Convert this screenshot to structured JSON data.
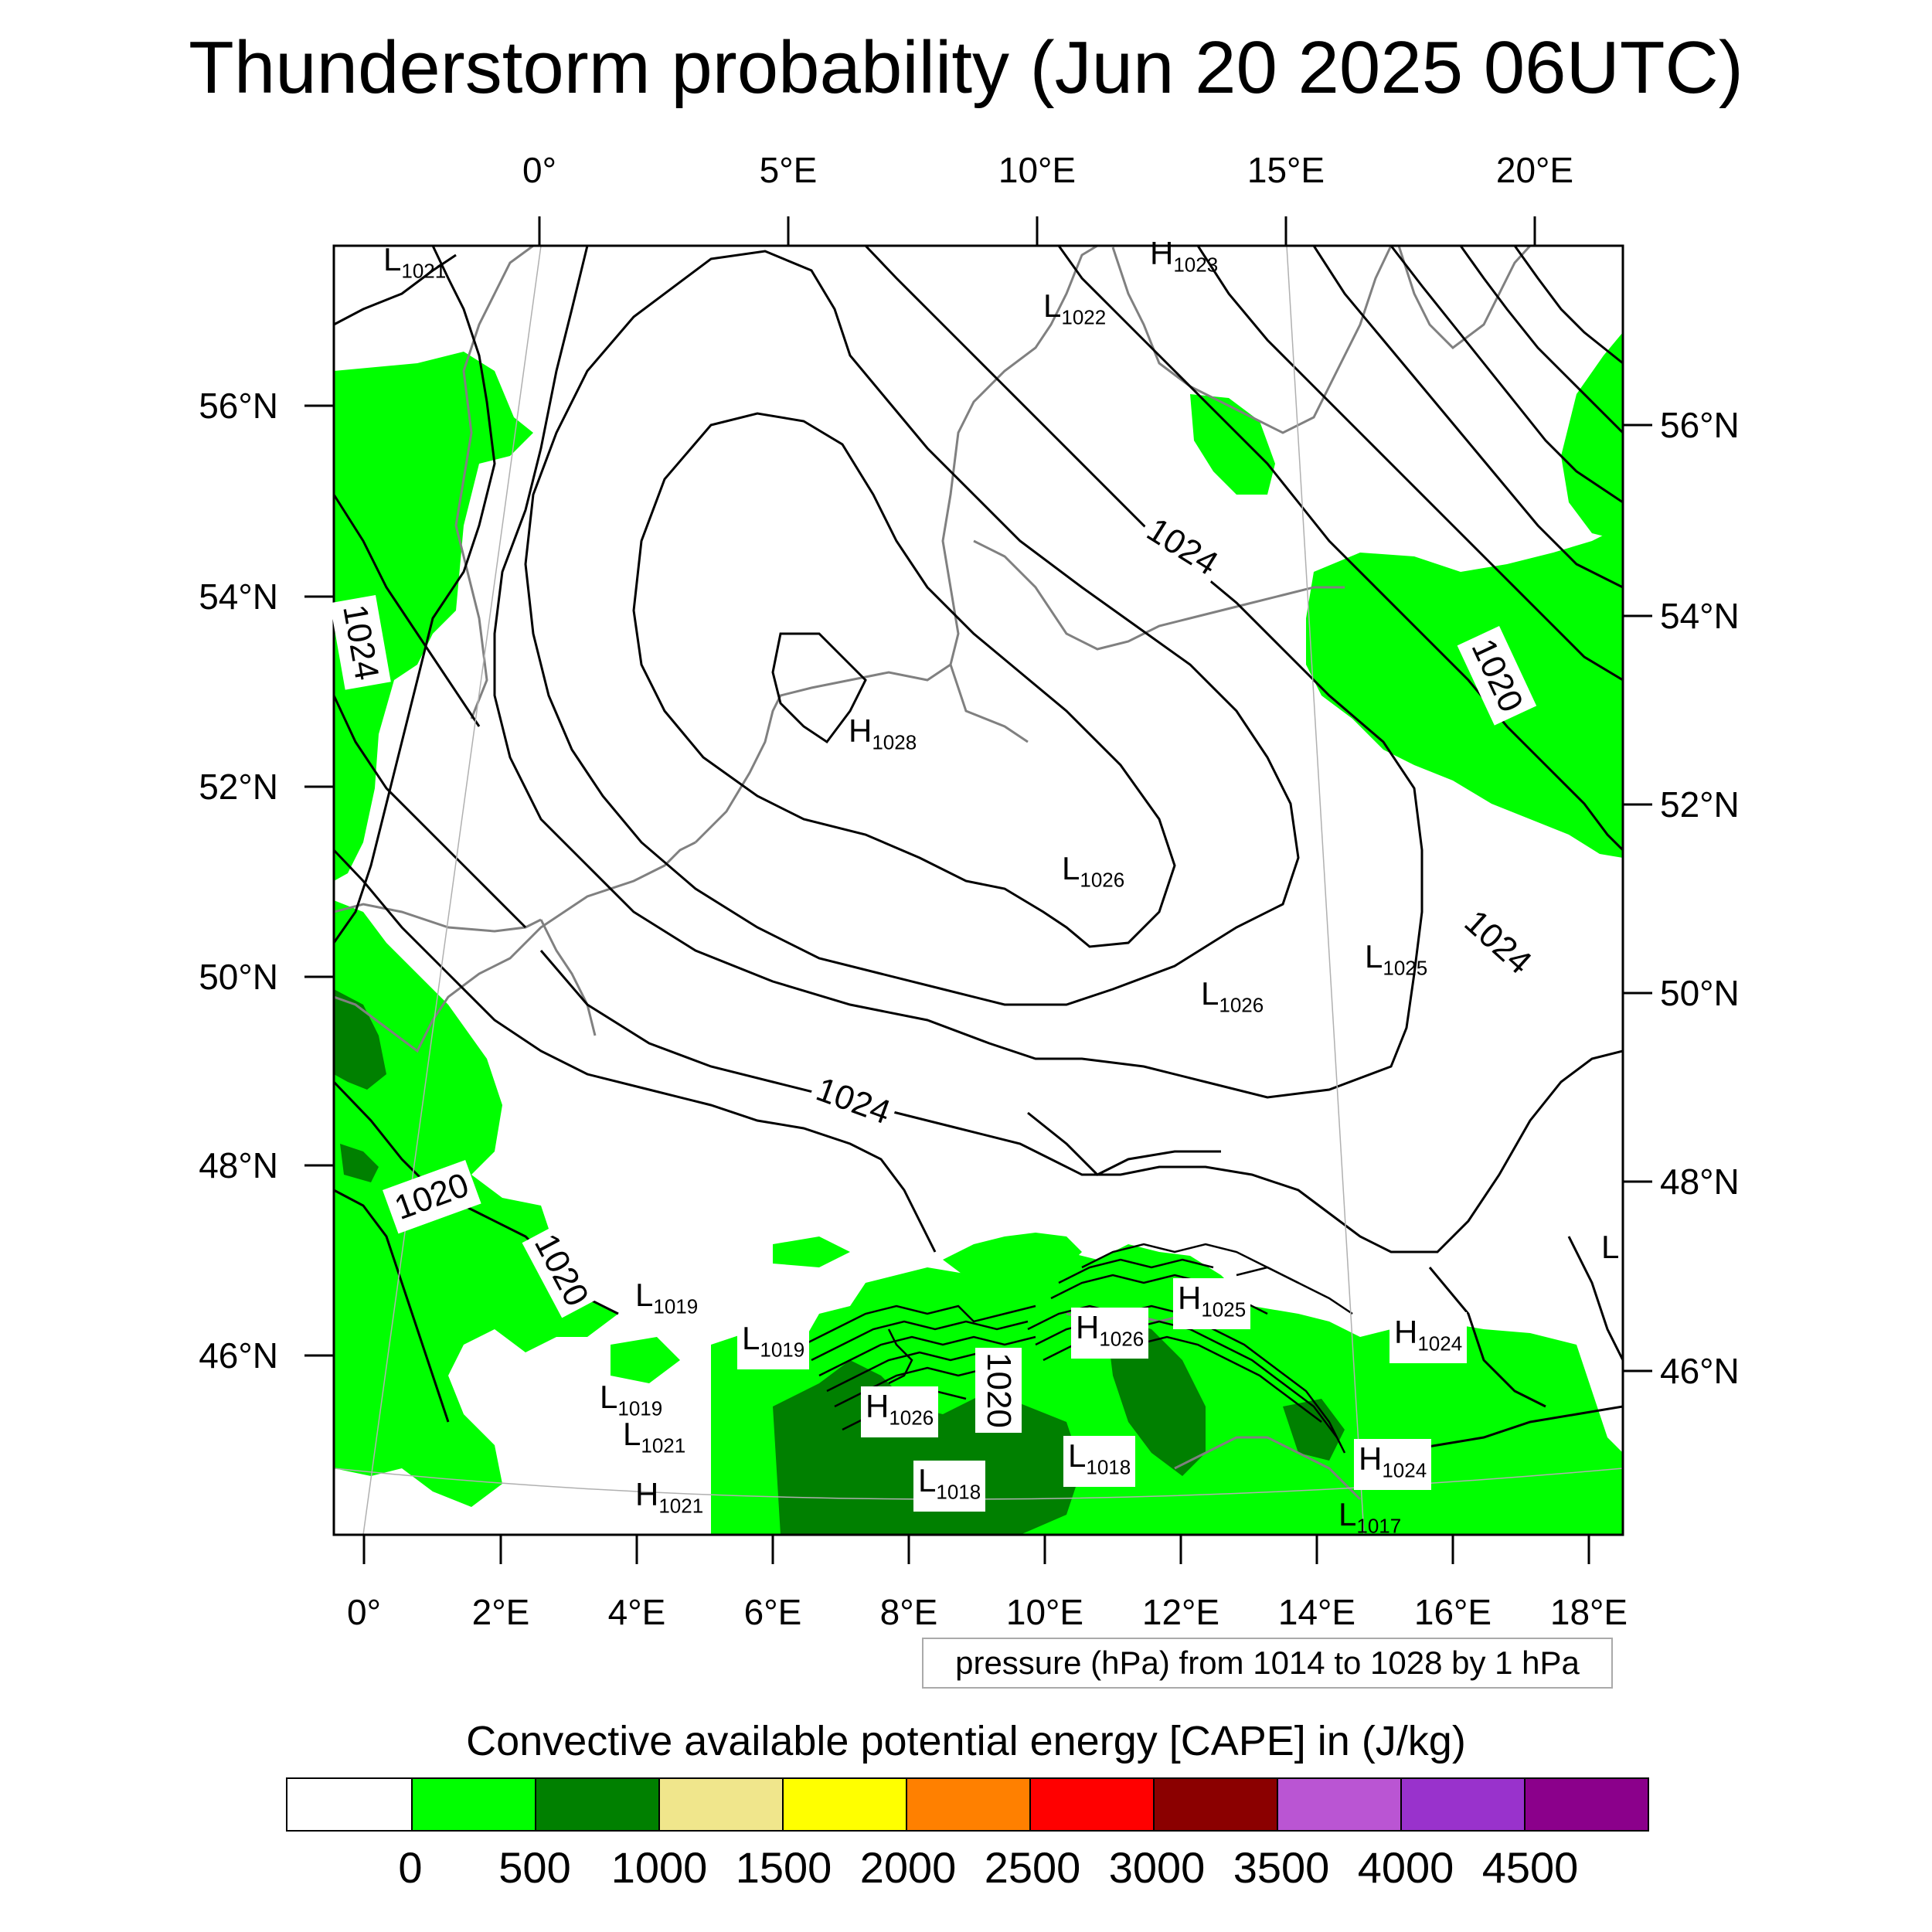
{
  "title": "Thunderstorm probability (Jun 20 2025 06UTC)",
  "top_longitudes": [
    "0°",
    "5°E",
    "10°E",
    "15°E",
    "20°E"
  ],
  "bottom_longitudes": [
    "0°",
    "2°E",
    "4°E",
    "6°E",
    "8°E",
    "10°E",
    "12°E",
    "14°E",
    "16°E",
    "18°E"
  ],
  "left_latitudes": [
    "56°N",
    "54°N",
    "52°N",
    "50°N",
    "48°N",
    "46°N"
  ],
  "right_latitudes": [
    "56°N",
    "54°N",
    "52°N",
    "50°N",
    "48°N",
    "46°N"
  ],
  "pressure_note": "pressure (hPa) from 1014 to 1028 by 1 hPa",
  "contour_labels": [
    "1024",
    "1020",
    "1024",
    "1024",
    "1020",
    "1020",
    "1024",
    "1020"
  ],
  "pressure_centers": [
    {
      "type": "L",
      "value": "1021"
    },
    {
      "type": "H",
      "value": "1023"
    },
    {
      "type": "L",
      "value": "1022"
    },
    {
      "type": "H",
      "value": "1028"
    },
    {
      "type": "L",
      "value": "1026"
    },
    {
      "type": "L",
      "value": "1025"
    },
    {
      "type": "L",
      "value": "1026"
    },
    {
      "type": "L",
      "value": "1019"
    },
    {
      "type": "L",
      "value": "1019"
    },
    {
      "type": "L",
      "value": "1019"
    },
    {
      "type": "L",
      "value": "1021"
    },
    {
      "type": "H",
      "value": "1021"
    },
    {
      "type": "H",
      "value": "1026"
    },
    {
      "type": "H",
      "value": "1025"
    },
    {
      "type": "H",
      "value": "1026"
    },
    {
      "type": "H",
      "value": "1024"
    },
    {
      "type": "L",
      "value": "1018"
    },
    {
      "type": "L",
      "value": "1018"
    },
    {
      "type": "H",
      "value": "1024"
    },
    {
      "type": "L",
      "value": "1017"
    },
    {
      "type": "L",
      "value": ""
    }
  ],
  "legend": {
    "title": "Convective available potential energy [CAPE] in (J/kg)",
    "ticks": [
      "0",
      "500",
      "1000",
      "1500",
      "2000",
      "2500",
      "3000",
      "3500",
      "4000",
      "4500"
    ],
    "colors": [
      "#ffffff",
      "#00ff00",
      "#008000",
      "#f0e68c",
      "#ffff00",
      "#ff8000",
      "#ff0000",
      "#8b0000",
      "#ba55d3",
      "#9932cc",
      "#8b008b"
    ]
  }
}
